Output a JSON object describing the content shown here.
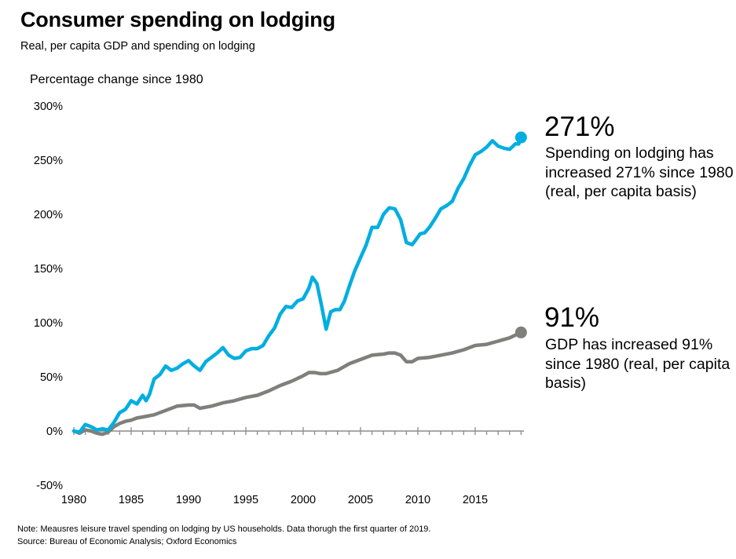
{
  "chart_data": {
    "type": "line",
    "title": "Consumer spending on lodging",
    "subtitle": "Real, per capita GDP and spending on lodging",
    "ylabel": "Percentage change since 1980",
    "xlabel": "",
    "xlim": [
      1980,
      2019.25
    ],
    "ylim": [
      -50,
      300
    ],
    "yticks": [
      -50,
      0,
      50,
      100,
      150,
      200,
      250,
      300
    ],
    "ytick_labels": [
      "-50%",
      "0%",
      "50%",
      "100%",
      "150%",
      "200%",
      "250%",
      "300%"
    ],
    "xticks": [
      1980,
      1985,
      1990,
      1995,
      2000,
      2005,
      2010,
      2015
    ],
    "xtick_labels": [
      "1980",
      "1985",
      "1990",
      "1995",
      "2000",
      "2005",
      "2010",
      "2015"
    ],
    "grid": false,
    "series": [
      {
        "name": "Spending on lodging",
        "color": "#00aee0",
        "x": [
          1980,
          1980.5,
          1981,
          1981.5,
          1982,
          1982.5,
          1983,
          1983.5,
          1984,
          1984.5,
          1985,
          1985.5,
          1986,
          1986.3,
          1986.6,
          1987,
          1987.5,
          1988,
          1988.5,
          1989,
          1989.5,
          1990,
          1990.5,
          1991,
          1991.5,
          1992,
          1992.5,
          1993,
          1993.5,
          1994,
          1994.5,
          1995,
          1995.5,
          1996,
          1996.5,
          1997,
          1997.5,
          1998,
          1998.5,
          1999,
          1999.5,
          2000,
          2000.5,
          2000.8,
          2001.2,
          2001.6,
          2002,
          2002.4,
          2002.8,
          2003.2,
          2003.6,
          2004,
          2004.5,
          2005,
          2005.5,
          2006,
          2006.5,
          2007,
          2007.5,
          2008,
          2008.5,
          2009,
          2009.5,
          2009.8,
          2010.2,
          2010.6,
          2011,
          2011.5,
          2012,
          2012.5,
          2013,
          2013.5,
          2014,
          2014.5,
          2015,
          2015.5,
          2016,
          2016.5,
          2017,
          2017.5,
          2018,
          2018.5,
          2018.8,
          2019
        ],
        "values": [
          0,
          -1,
          6,
          4,
          1,
          2,
          1,
          8,
          17,
          20,
          28,
          25,
          33,
          28,
          34,
          48,
          52,
          60,
          56,
          58,
          62,
          65,
          60,
          56,
          64,
          68,
          72,
          77,
          70,
          67,
          68,
          74,
          76,
          76,
          79,
          88,
          95,
          108,
          115,
          114,
          120,
          122,
          132,
          142,
          136,
          116,
          94,
          110,
          112,
          112,
          120,
          133,
          148,
          160,
          172,
          188,
          188,
          200,
          206,
          205,
          195,
          174,
          172,
          176,
          182,
          183,
          188,
          196,
          205,
          208,
          212,
          224,
          233,
          245,
          255,
          258,
          262,
          268,
          263,
          261,
          260,
          265,
          265,
          271
        ],
        "end_label": "271%"
      },
      {
        "name": "GDP",
        "color": "#7f7f7b",
        "x": [
          1980,
          1980.5,
          1981,
          1981.5,
          1982,
          1982.5,
          1983,
          1983.5,
          1984,
          1984.5,
          1985,
          1985.5,
          1986,
          1987,
          1988,
          1989,
          1990,
          1990.5,
          1991,
          1992,
          1993,
          1994,
          1995,
          1996,
          1997,
          1998,
          1999,
          2000,
          2000.5,
          2001,
          2001.5,
          2002,
          2003,
          2004,
          2005,
          2006,
          2007,
          2007.5,
          2008,
          2008.5,
          2009,
          2009.5,
          2010,
          2011,
          2012,
          2013,
          2014,
          2015,
          2016,
          2017,
          2018,
          2019
        ],
        "values": [
          0,
          -2,
          1,
          0,
          -2,
          -3,
          -1,
          4,
          7,
          9,
          10,
          12,
          13,
          15,
          19,
          23,
          24,
          24,
          21,
          23,
          26,
          28,
          31,
          33,
          37,
          42,
          46,
          51,
          54,
          54,
          53,
          53,
          56,
          62,
          66,
          70,
          71,
          72,
          72,
          70,
          64,
          64,
          67,
          68,
          70,
          72,
          75,
          79,
          80,
          83,
          86,
          91
        ],
        "end_label": "91%"
      }
    ]
  },
  "annotations": {
    "lodging_value": "271%",
    "lodging_text": "Spending on lodging has increased 271% since 1980 (real, per capita basis)",
    "gdp_value": "91%",
    "gdp_text": "GDP has increased 91% since 1980 (real, per capita basis)"
  },
  "footnotes": {
    "note": "Note: Meausres leisure travel spending on lodging by US households. Data thorugh the first quarter of 2019.",
    "source": "Source: Bureau of Economic Analysis; Oxford Economics"
  }
}
